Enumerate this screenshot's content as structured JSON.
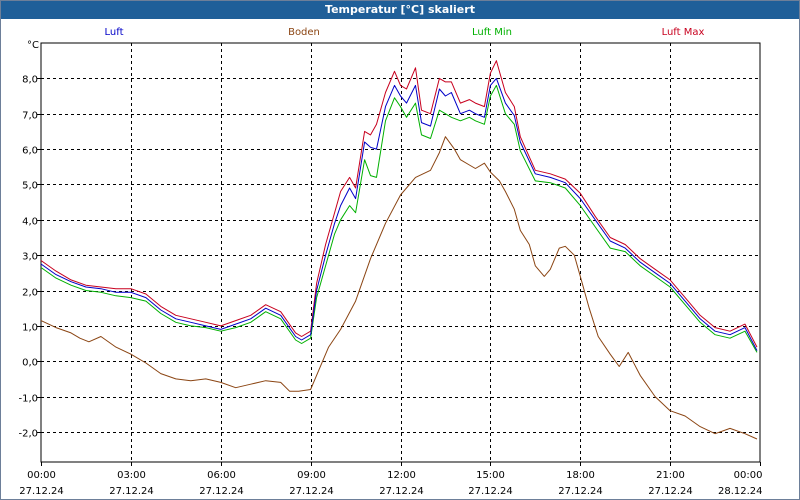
{
  "window": {
    "title": "Temperatur [°C] skaliert"
  },
  "chart_data": {
    "type": "line",
    "title": "Temperatur [°C] skaliert",
    "ylabel": "°C",
    "xlabel": "",
    "ylim": [
      -2.85,
      9.0
    ],
    "xlim": [
      0,
      24
    ],
    "grid": true,
    "legend_placement": "top",
    "y_ticks": [
      8.0,
      7.0,
      6.0,
      5.0,
      4.0,
      3.0,
      2.0,
      1.0,
      0.0,
      -1.0,
      -2.0
    ],
    "y_tick_labels": [
      "8,0",
      "7,0",
      "6,0",
      "5,0",
      "4,0",
      "3,0",
      "2,0",
      "1,0",
      "0,0",
      "-1,0",
      "-2,0"
    ],
    "x_ticks": [
      {
        "x": 0,
        "time": "00:00",
        "date": "27.12.24"
      },
      {
        "x": 3,
        "time": "03:00",
        "date": "27.12.24"
      },
      {
        "x": 6,
        "time": "06:00",
        "date": "27.12.24"
      },
      {
        "x": 9,
        "time": "09:00",
        "date": "27.12.24"
      },
      {
        "x": 12,
        "time": "12:00",
        "date": "27.12.24"
      },
      {
        "x": 15,
        "time": "15:00",
        "date": "27.12.24"
      },
      {
        "x": 18,
        "time": "18:00",
        "date": "27.12.24"
      },
      {
        "x": 21,
        "time": "21:00",
        "date": "27.12.24"
      },
      {
        "x": 24,
        "time": "00:00",
        "date": "28.12.24"
      }
    ],
    "series": [
      {
        "name": "Luft",
        "color": "#0000c8",
        "x": [
          0,
          0.5,
          1,
          1.5,
          2,
          2.5,
          3,
          3.5,
          4,
          4.5,
          5,
          5.5,
          6,
          6.5,
          7,
          7.5,
          8,
          8.5,
          8.7,
          9,
          9.2,
          9.5,
          9.8,
          10,
          10.3,
          10.5,
          10.8,
          11,
          11.2,
          11.5,
          11.8,
          12,
          12.2,
          12.5,
          12.7,
          13,
          13.3,
          13.5,
          13.7,
          14,
          14.3,
          14.5,
          14.8,
          15,
          15.2,
          15.5,
          15.8,
          16,
          16.5,
          17,
          17.5,
          18,
          18.5,
          19,
          19.5,
          20,
          20.5,
          21,
          21.5,
          22,
          22.5,
          23,
          23.5,
          23.9
        ],
        "values": [
          2.75,
          2.45,
          2.25,
          2.1,
          2.05,
          1.95,
          1.95,
          1.8,
          1.45,
          1.2,
          1.1,
          1.0,
          0.9,
          1.05,
          1.2,
          1.5,
          1.3,
          0.7,
          0.6,
          0.75,
          2.0,
          3.0,
          3.9,
          4.4,
          4.9,
          4.6,
          6.2,
          6.05,
          6.0,
          7.2,
          7.8,
          7.5,
          7.3,
          7.8,
          6.75,
          6.65,
          7.7,
          7.5,
          7.6,
          7.0,
          7.1,
          7.0,
          6.9,
          7.8,
          8.0,
          7.3,
          6.95,
          6.2,
          5.3,
          5.2,
          5.05,
          4.6,
          4.0,
          3.4,
          3.2,
          2.8,
          2.5,
          2.2,
          1.7,
          1.2,
          0.85,
          0.75,
          0.95,
          0.3
        ]
      },
      {
        "name": "Boden",
        "color": "#8b4513",
        "x": [
          0,
          0.5,
          1,
          1.3,
          1.6,
          2,
          2.5,
          3,
          3.5,
          4,
          4.5,
          5,
          5.5,
          6,
          6.5,
          7,
          7.5,
          8,
          8.3,
          8.6,
          9,
          9.3,
          9.6,
          10,
          10.5,
          11,
          11.5,
          12,
          12.5,
          13,
          13.3,
          13.5,
          13.8,
          14,
          14.3,
          14.5,
          14.8,
          15,
          15.3,
          15.5,
          15.8,
          16,
          16.3,
          16.5,
          16.8,
          17,
          17.3,
          17.5,
          17.8,
          18,
          18.3,
          18.6,
          19,
          19.3,
          19.6,
          20,
          20.5,
          21,
          21.5,
          22,
          22.5,
          23,
          23.5,
          23.9
        ],
        "values": [
          1.15,
          0.95,
          0.8,
          0.65,
          0.55,
          0.7,
          0.4,
          0.2,
          -0.05,
          -0.35,
          -0.5,
          -0.55,
          -0.5,
          -0.6,
          -0.75,
          -0.65,
          -0.55,
          -0.6,
          -0.85,
          -0.85,
          -0.8,
          -0.2,
          0.4,
          0.9,
          1.7,
          2.9,
          3.9,
          4.7,
          5.2,
          5.4,
          5.9,
          6.35,
          6.0,
          5.7,
          5.55,
          5.45,
          5.6,
          5.35,
          5.1,
          4.8,
          4.3,
          3.7,
          3.3,
          2.7,
          2.4,
          2.6,
          3.2,
          3.25,
          3.0,
          2.4,
          1.5,
          0.7,
          0.2,
          -0.15,
          0.25,
          -0.4,
          -1.0,
          -1.4,
          -1.55,
          -1.85,
          -2.05,
          -1.9,
          -2.05,
          -2.2
        ]
      },
      {
        "name": "Luft Min",
        "color": "#00b000",
        "x": [
          0,
          0.5,
          1,
          1.5,
          2,
          2.5,
          3,
          3.5,
          4,
          4.5,
          5,
          5.5,
          6,
          6.5,
          7,
          7.5,
          8,
          8.5,
          8.7,
          9,
          9.2,
          9.5,
          9.8,
          10,
          10.3,
          10.5,
          10.8,
          11,
          11.2,
          11.5,
          11.8,
          12,
          12.2,
          12.5,
          12.7,
          13,
          13.3,
          13.5,
          13.7,
          14,
          14.3,
          14.5,
          14.8,
          15,
          15.2,
          15.5,
          15.8,
          16,
          16.5,
          17,
          17.5,
          18,
          18.5,
          19,
          19.5,
          20,
          20.5,
          21,
          21.5,
          22,
          22.5,
          23,
          23.5,
          23.9
        ],
        "values": [
          2.65,
          2.35,
          2.15,
          2.0,
          1.95,
          1.85,
          1.8,
          1.7,
          1.35,
          1.1,
          1.0,
          0.95,
          0.85,
          0.95,
          1.1,
          1.4,
          1.2,
          0.6,
          0.5,
          0.65,
          1.8,
          2.7,
          3.6,
          4.0,
          4.4,
          4.2,
          5.7,
          5.25,
          5.2,
          6.8,
          7.45,
          7.2,
          6.9,
          7.3,
          6.4,
          6.3,
          7.1,
          7.0,
          6.9,
          6.8,
          6.9,
          6.8,
          6.7,
          7.5,
          7.8,
          7.0,
          6.7,
          5.95,
          5.1,
          5.05,
          4.9,
          4.4,
          3.8,
          3.2,
          3.1,
          2.7,
          2.4,
          2.1,
          1.6,
          1.1,
          0.75,
          0.65,
          0.85,
          0.25
        ]
      },
      {
        "name": "Luft Max",
        "color": "#c8001e",
        "x": [
          0,
          0.5,
          1,
          1.5,
          2,
          2.5,
          3,
          3.5,
          4,
          4.5,
          5,
          5.5,
          6,
          6.5,
          7,
          7.5,
          8,
          8.5,
          8.7,
          9,
          9.2,
          9.5,
          9.8,
          10,
          10.3,
          10.5,
          10.8,
          11,
          11.2,
          11.5,
          11.8,
          12,
          12.2,
          12.5,
          12.7,
          13,
          13.3,
          13.5,
          13.7,
          14,
          14.3,
          14.5,
          14.8,
          15,
          15.2,
          15.5,
          15.8,
          16,
          16.5,
          17,
          17.5,
          18,
          18.5,
          19,
          19.5,
          20,
          20.5,
          21,
          21.5,
          22,
          22.5,
          23,
          23.5,
          23.9
        ],
        "values": [
          2.85,
          2.55,
          2.3,
          2.15,
          2.1,
          2.05,
          2.05,
          1.9,
          1.55,
          1.3,
          1.2,
          1.1,
          1.0,
          1.15,
          1.3,
          1.6,
          1.4,
          0.8,
          0.7,
          0.85,
          2.2,
          3.3,
          4.2,
          4.8,
          5.2,
          4.9,
          6.5,
          6.4,
          6.7,
          7.6,
          8.2,
          7.8,
          7.7,
          8.3,
          7.1,
          7.0,
          8.0,
          7.9,
          7.9,
          7.3,
          7.4,
          7.3,
          7.2,
          8.15,
          8.5,
          7.6,
          7.2,
          6.35,
          5.4,
          5.3,
          5.15,
          4.75,
          4.1,
          3.5,
          3.3,
          2.9,
          2.6,
          2.3,
          1.8,
          1.3,
          0.95,
          0.85,
          1.05,
          0.4
        ]
      }
    ]
  }
}
